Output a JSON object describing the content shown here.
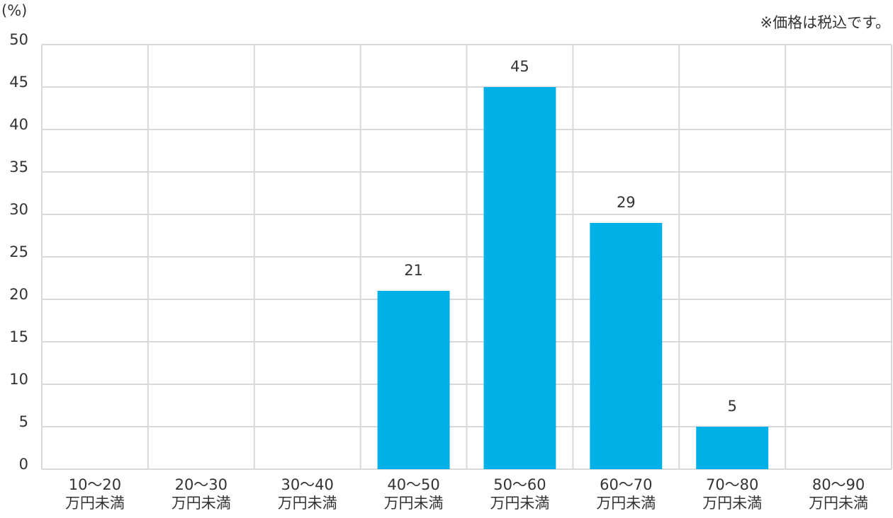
{
  "chart_data": {
    "type": "bar",
    "y_unit": "(%)",
    "note": "※価格は税込です。",
    "categories": [
      [
        "10〜20",
        "万円未満"
      ],
      [
        "20〜30",
        "万円未満"
      ],
      [
        "30〜40",
        "万円未満"
      ],
      [
        "40〜50",
        "万円未満"
      ],
      [
        "50〜60",
        "万円未満"
      ],
      [
        "60〜70",
        "万円未満"
      ],
      [
        "70〜80",
        "万円未満"
      ],
      [
        "80〜90",
        "万円未満"
      ]
    ],
    "values": [
      null,
      null,
      null,
      21,
      45,
      29,
      5,
      null
    ],
    "color": "#00b0e6",
    "ylim": [
      0,
      50
    ],
    "yticks": [
      0,
      5,
      10,
      15,
      20,
      25,
      30,
      35,
      40,
      45,
      50
    ],
    "grid": true
  }
}
